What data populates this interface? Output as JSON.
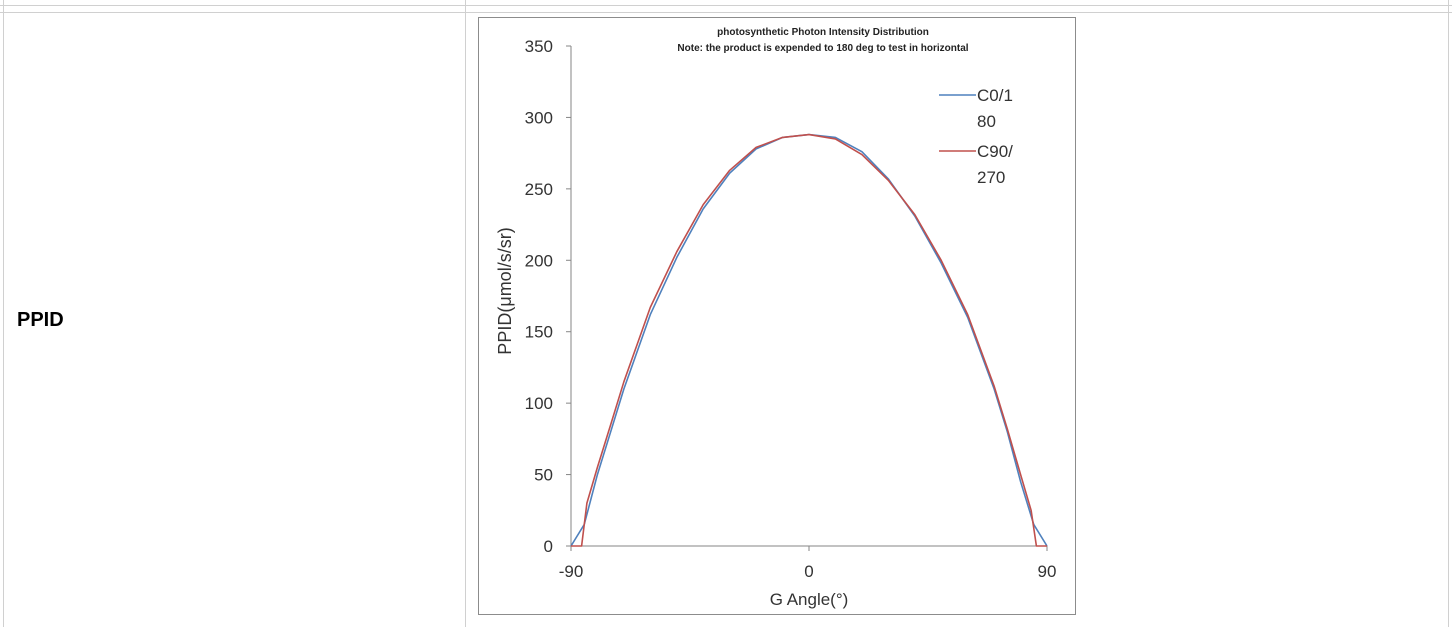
{
  "row": {
    "label": "PPID"
  },
  "chart_data": {
    "type": "line",
    "title": "photosynthetic Photon Intensity Distribution",
    "subtitle": "Note: the product is expended to 180 deg to test in horizontal",
    "xlabel": "G Angle(°)",
    "ylabel": "PPID(μmol/s/sr)",
    "xlim": [
      -90,
      90
    ],
    "ylim": [
      0,
      350
    ],
    "xticks": [
      "-90",
      "0",
      "90"
    ],
    "yticks": [
      "0",
      "50",
      "100",
      "150",
      "200",
      "250",
      "300",
      "350"
    ],
    "grid": false,
    "legend_position": "top-right",
    "series": [
      {
        "name": "C0/180",
        "name_lines": [
          "C0/1",
          "80"
        ],
        "color": "#4f81bd",
        "x": [
          -90,
          -85,
          -80,
          -75,
          -70,
          -60,
          -50,
          -40,
          -30,
          -20,
          -10,
          0,
          10,
          20,
          30,
          40,
          50,
          60,
          70,
          75,
          80,
          85,
          90
        ],
        "y": [
          0,
          15,
          50,
          80,
          110,
          162,
          202,
          236,
          261,
          278,
          286,
          288,
          286,
          276,
          257,
          231,
          198,
          160,
          110,
          80,
          45,
          15,
          0
        ]
      },
      {
        "name": "C90/270",
        "name_lines": [
          "C90/",
          "270"
        ],
        "color": "#c0504d",
        "x": [
          -90,
          -86,
          -84,
          -80,
          -75,
          -70,
          -60,
          -50,
          -40,
          -30,
          -20,
          -10,
          0,
          10,
          20,
          30,
          40,
          50,
          60,
          70,
          75,
          80,
          84,
          86,
          90
        ],
        "y": [
          0,
          0,
          30,
          55,
          85,
          115,
          167,
          206,
          239,
          263,
          279,
          286,
          288,
          285,
          274,
          256,
          232,
          200,
          162,
          112,
          82,
          50,
          25,
          0,
          0
        ]
      }
    ]
  }
}
